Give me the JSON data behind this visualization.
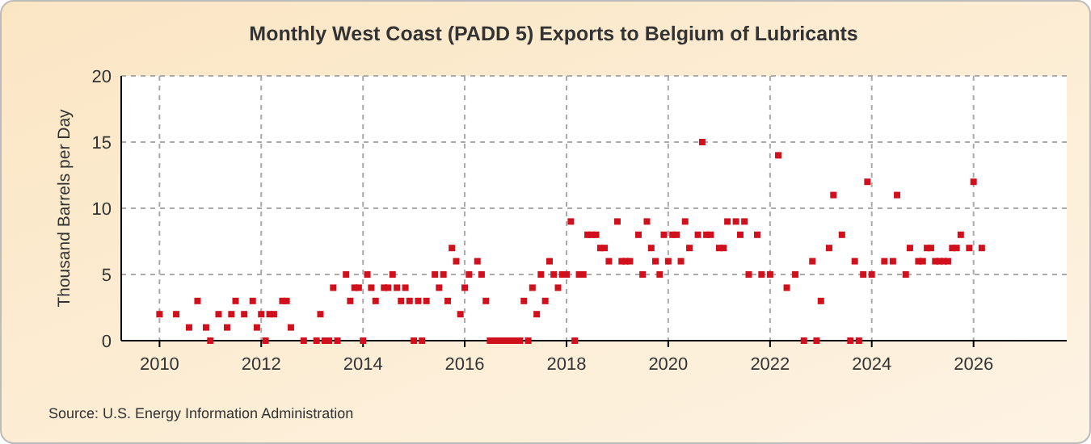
{
  "chart_data": {
    "type": "scatter",
    "title": "Monthly West Coast (PADD 5) Exports to Belgium of Lubricants",
    "ylabel": "Thousand Barrels per Day",
    "annotations": [
      "Source: U.S. Energy Information Administration"
    ],
    "x": [
      "2010-01",
      "2010-05",
      "2010-08",
      "2010-10",
      "2010-12",
      "2011-01",
      "2011-03",
      "2011-05",
      "2011-06",
      "2011-07",
      "2011-09",
      "2011-11",
      "2011-12",
      "2012-01",
      "2012-02",
      "2012-03",
      "2012-04",
      "2012-06",
      "2012-07",
      "2012-08",
      "2012-11",
      "2013-02",
      "2013-03",
      "2013-04",
      "2013-05",
      "2013-06",
      "2013-07",
      "2013-09",
      "2013-10",
      "2013-11",
      "2013-12",
      "2014-01",
      "2014-02",
      "2014-03",
      "2014-04",
      "2014-06",
      "2014-07",
      "2014-08",
      "2014-09",
      "2014-10",
      "2014-11",
      "2014-12",
      "2015-01",
      "2015-02",
      "2015-03",
      "2015-04",
      "2015-06",
      "2015-07",
      "2015-08",
      "2015-09",
      "2015-10",
      "2015-11",
      "2015-12",
      "2016-01",
      "2016-02",
      "2016-04",
      "2016-05",
      "2016-06",
      "2016-07",
      "2016-08",
      "2016-09",
      "2016-10",
      "2016-11",
      "2016-12",
      "2017-01",
      "2017-02",
      "2017-03",
      "2017-04",
      "2017-05",
      "2017-06",
      "2017-07",
      "2017-08",
      "2017-09",
      "2017-10",
      "2017-11",
      "2017-12",
      "2018-01",
      "2018-02",
      "2018-03",
      "2018-04",
      "2018-05",
      "2018-06",
      "2018-07",
      "2018-08",
      "2018-09",
      "2018-10",
      "2018-11",
      "2019-01",
      "2019-02",
      "2019-03",
      "2019-04",
      "2019-06",
      "2019-07",
      "2019-08",
      "2019-09",
      "2019-10",
      "2019-11",
      "2019-12",
      "2020-01",
      "2020-02",
      "2020-03",
      "2020-04",
      "2020-05",
      "2020-06",
      "2020-08",
      "2020-09",
      "2020-10",
      "2020-11",
      "2021-01",
      "2021-02",
      "2021-03",
      "2021-05",
      "2021-06",
      "2021-07",
      "2021-08",
      "2021-10",
      "2021-11",
      "2022-01",
      "2022-03",
      "2022-05",
      "2022-07",
      "2022-09",
      "2022-11",
      "2022-12",
      "2023-01",
      "2023-03",
      "2023-04",
      "2023-06",
      "2023-08",
      "2023-09",
      "2023-10",
      "2023-11",
      "2023-12",
      "2024-01",
      "2024-04",
      "2024-06",
      "2024-07",
      "2024-09",
      "2024-10",
      "2024-12",
      "2025-01",
      "2025-02",
      "2025-03",
      "2025-04",
      "2025-05",
      "2025-06",
      "2025-07",
      "2025-08",
      "2025-09",
      "2025-10",
      "2025-12",
      "2026-01",
      "2026-03"
    ],
    "series": [
      {
        "color": "#d0101c",
        "values": [
          2,
          2,
          1,
          3,
          1,
          0,
          2,
          1,
          2,
          3,
          2,
          3,
          1,
          2,
          0,
          2,
          2,
          3,
          3,
          1,
          0,
          0,
          2,
          0,
          0,
          4,
          0,
          5,
          3,
          4,
          4,
          0,
          5,
          4,
          3,
          4,
          4,
          5,
          4,
          3,
          4,
          3,
          0,
          3,
          0,
          3,
          5,
          4,
          5,
          3,
          7,
          6,
          2,
          4,
          5,
          6,
          5,
          3,
          0,
          0,
          0,
          0,
          0,
          0,
          0,
          0,
          3,
          0,
          4,
          2,
          5,
          3,
          6,
          5,
          4,
          5,
          5,
          9,
          0,
          5,
          5,
          8,
          8,
          8,
          7,
          7,
          6,
          9,
          6,
          6,
          6,
          8,
          5,
          9,
          7,
          6,
          5,
          8,
          6,
          8,
          8,
          6,
          9,
          7,
          8,
          15,
          8,
          8,
          7,
          7,
          9,
          9,
          8,
          9,
          5,
          8,
          5,
          5,
          14,
          4,
          5,
          0,
          6,
          0,
          3,
          7,
          11,
          8,
          0,
          6,
          0,
          5,
          12,
          5,
          6,
          6,
          11,
          5,
          7,
          6,
          6,
          7,
          7,
          6,
          6,
          6,
          6,
          7,
          7,
          8,
          7,
          12,
          7
        ]
      }
    ],
    "xlim": [
      "2009-04",
      "2027-11"
    ],
    "xticks": [
      "2010",
      "2012",
      "2014",
      "2016",
      "2018",
      "2020",
      "2022",
      "2024",
      "2026"
    ],
    "ylim": [
      0,
      20
    ],
    "yticks": [
      0,
      5,
      10,
      15,
      20
    ],
    "grid": true,
    "marker": "square"
  }
}
